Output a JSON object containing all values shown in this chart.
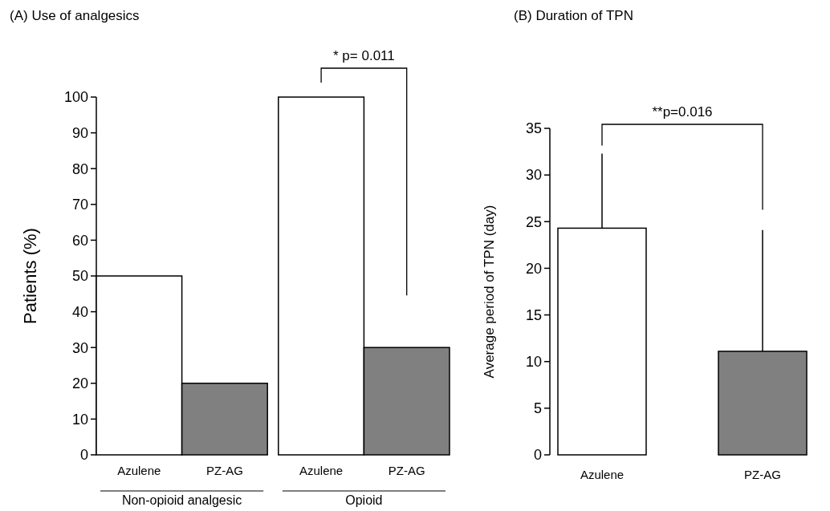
{
  "chart_data": [
    {
      "type": "bar",
      "title": "(A) Use of analgesics",
      "ylabel": "Patients (%)",
      "categories": [
        "Non-opioid analgesic",
        "Opioid"
      ],
      "series": [
        {
          "name": "Azulene",
          "color": "#ffffff",
          "values": [
            50,
            100
          ]
        },
        {
          "name": "PZ-AG",
          "color": "#808080",
          "values": [
            20,
            30
          ]
        }
      ],
      "ylim": [
        0,
        100
      ],
      "yticks": [
        0,
        10,
        20,
        30,
        40,
        50,
        60,
        70,
        80,
        90,
        100
      ],
      "annotations": [
        "* p= 0.011"
      ]
    },
    {
      "type": "bar",
      "title": "(B) Duration of TPN",
      "ylabel": "Average period of TPN (day)",
      "categories": [
        "Azulene",
        "PZ-AG"
      ],
      "values": [
        24.3,
        11.1
      ],
      "colors": [
        "#ffffff",
        "#808080"
      ],
      "errors": [
        [
          24.3,
          32.3
        ],
        [
          11.1,
          24.1
        ]
      ],
      "ylim": [
        0,
        35
      ],
      "yticks": [
        0,
        5,
        10,
        15,
        20,
        25,
        30,
        35
      ],
      "annotations": [
        "**p=0.016"
      ]
    }
  ]
}
